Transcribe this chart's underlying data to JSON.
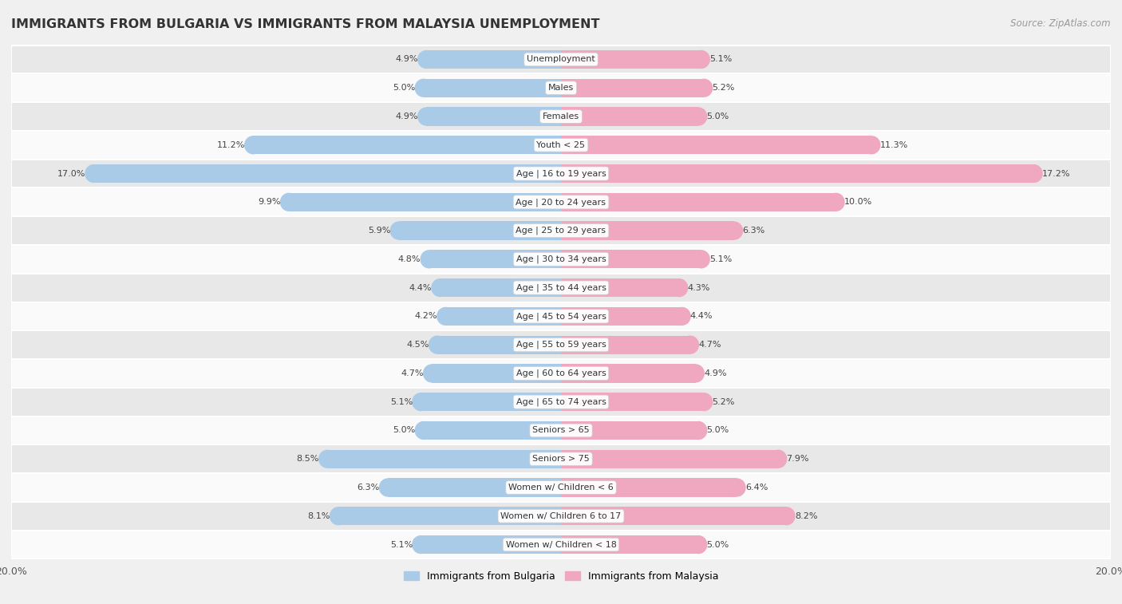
{
  "title": "IMMIGRANTS FROM BULGARIA VS IMMIGRANTS FROM MALAYSIA UNEMPLOYMENT",
  "source": "Source: ZipAtlas.com",
  "categories": [
    "Unemployment",
    "Males",
    "Females",
    "Youth < 25",
    "Age | 16 to 19 years",
    "Age | 20 to 24 years",
    "Age | 25 to 29 years",
    "Age | 30 to 34 years",
    "Age | 35 to 44 years",
    "Age | 45 to 54 years",
    "Age | 55 to 59 years",
    "Age | 60 to 64 years",
    "Age | 65 to 74 years",
    "Seniors > 65",
    "Seniors > 75",
    "Women w/ Children < 6",
    "Women w/ Children 6 to 17",
    "Women w/ Children < 18"
  ],
  "bulgaria_values": [
    4.9,
    5.0,
    4.9,
    11.2,
    17.0,
    9.9,
    5.9,
    4.8,
    4.4,
    4.2,
    4.5,
    4.7,
    5.1,
    5.0,
    8.5,
    6.3,
    8.1,
    5.1
  ],
  "malaysia_values": [
    5.1,
    5.2,
    5.0,
    11.3,
    17.2,
    10.0,
    6.3,
    5.1,
    4.3,
    4.4,
    4.7,
    4.9,
    5.2,
    5.0,
    7.9,
    6.4,
    8.2,
    5.0
  ],
  "bulgaria_color": "#aacbe8",
  "malaysia_color": "#f0a8c0",
  "xlim": 20.0,
  "legend_label_bulgaria": "Immigrants from Bulgaria",
  "legend_label_malaysia": "Immigrants from Malaysia",
  "bg_color": "#f0f0f0",
  "row_even_color": "#e8e8e8",
  "row_odd_color": "#fafafa",
  "title_fontsize": 11.5,
  "source_fontsize": 8.5,
  "label_fontsize": 8.0,
  "value_fontsize": 8.0
}
